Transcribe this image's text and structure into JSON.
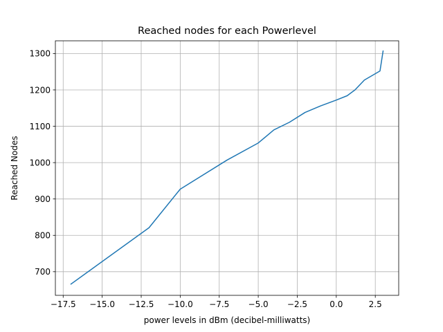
{
  "chart_data": {
    "type": "line",
    "title": "Reached nodes for each Powerlevel",
    "xlabel": "power levels in dBm (decibel-milliwatts)",
    "ylabel": "Reached Nodes",
    "xlim": [
      -18.0,
      4.0
    ],
    "ylim": [
      635,
      1335
    ],
    "grid": true,
    "x_ticks": [
      -17.5,
      -15.0,
      -12.5,
      -10.0,
      -7.5,
      -5.0,
      -2.5,
      0.0,
      2.5
    ],
    "x_tick_labels": [
      "−17.5",
      "−15.0",
      "−12.5",
      "−10.0",
      "−7.5",
      "−5.0",
      "−2.5",
      "0.0",
      "2.5"
    ],
    "y_ticks": [
      700,
      800,
      900,
      1000,
      1100,
      1200,
      1300
    ],
    "y_tick_labels": [
      "700",
      "800",
      "900",
      "1000",
      "1100",
      "1200",
      "1300"
    ],
    "series": [
      {
        "color": "#1f77b4",
        "x": [
          -17,
          -12,
          -10,
          -7,
          -5,
          -4,
          -3,
          -2,
          -1,
          0,
          0.7,
          1.2,
          1.8,
          2.8,
          3
        ],
        "y": [
          666,
          821,
          927,
          1007,
          1054,
          1090,
          1111,
          1138,
          1156,
          1172,
          1184,
          1200,
          1227,
          1252,
          1307
        ]
      }
    ]
  }
}
